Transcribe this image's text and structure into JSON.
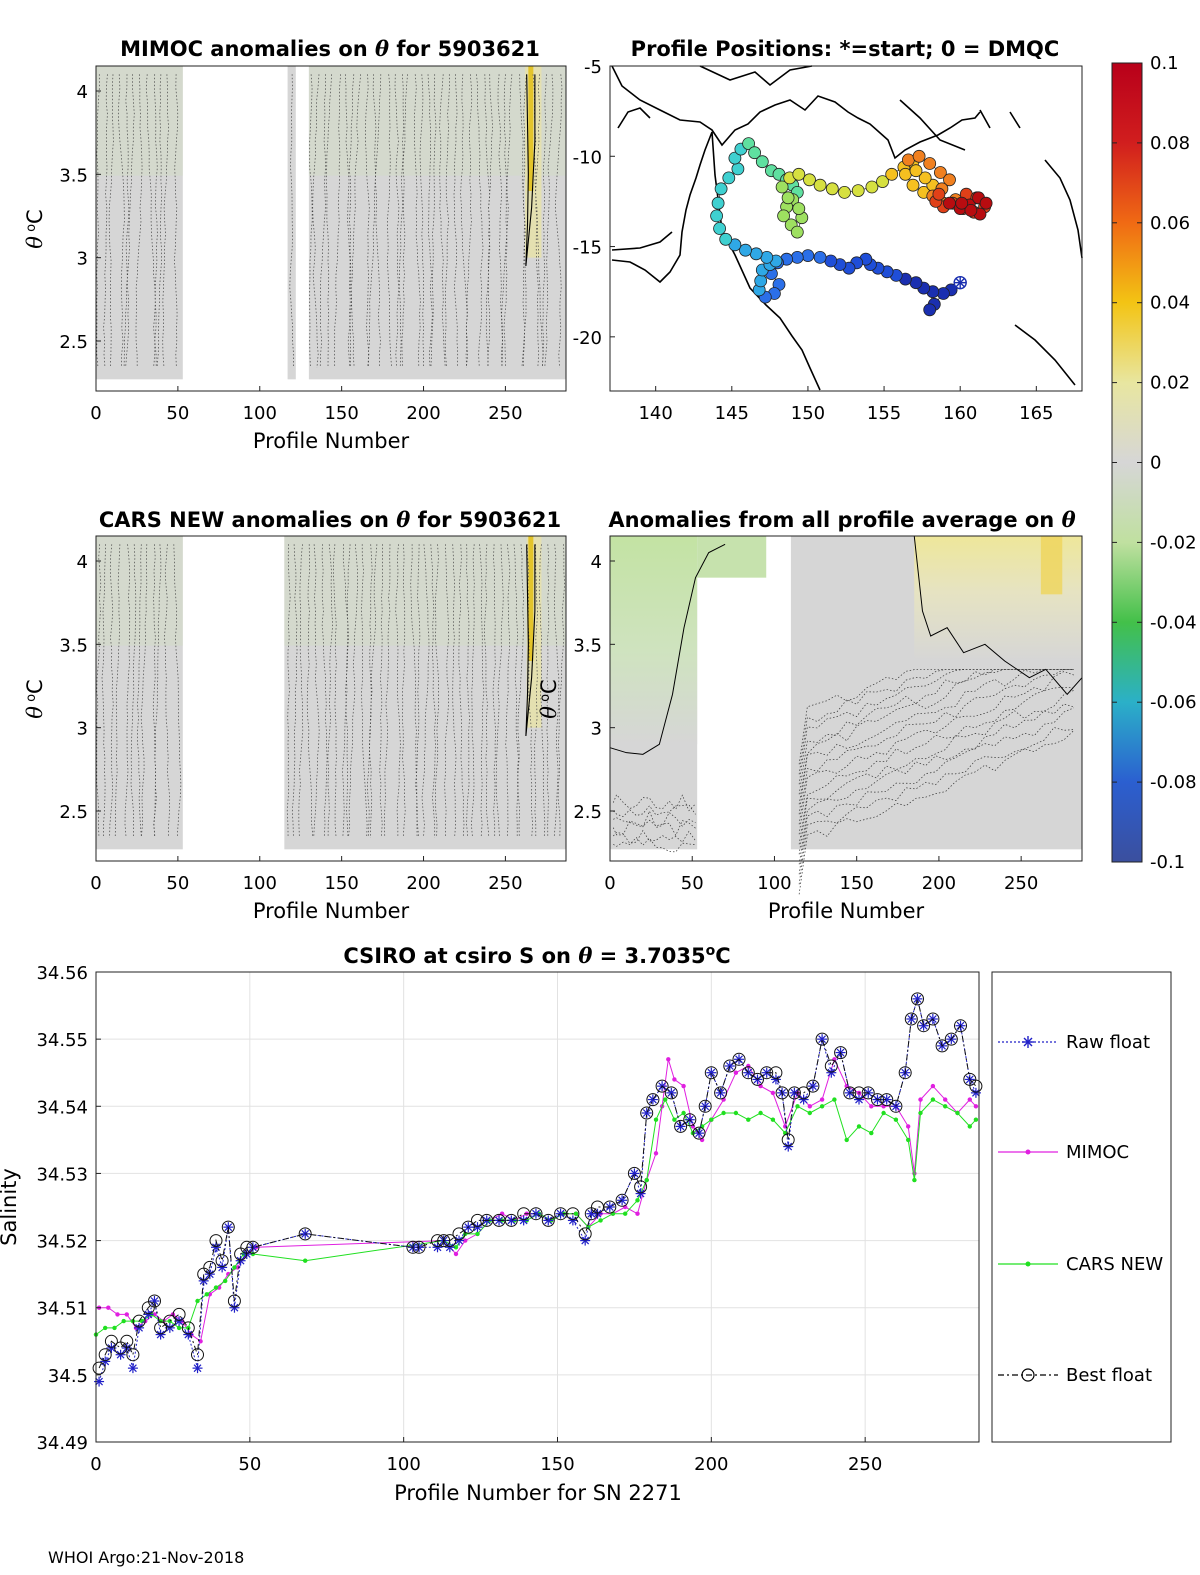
{
  "footer": "WHOI Argo:21-Nov-2018",
  "colorbar": {
    "ticks": [
      "0.1",
      "0.08",
      "0.06",
      "0.04",
      "0.02",
      "0",
      "-0.02",
      "-0.04",
      "-0.06",
      "-0.08",
      "-0.1"
    ],
    "range": [
      -0.1,
      0.1
    ],
    "colors": [
      "#d11e1e",
      "#f06a14",
      "#f3c414",
      "#e8e6a0",
      "#d6d6d6",
      "#c0e0a0",
      "#43c049",
      "#2bb0c8",
      "#2b5fd0",
      "#3b4f9e"
    ]
  },
  "chart_data": [
    {
      "id": "mimoc",
      "type": "heatmap",
      "title_parts": [
        "MIMOC anomalies on ",
        "θ",
        "  for 5903621"
      ],
      "xlabel": "Profile Number",
      "ylabel_parts": [
        "θ",
        " o",
        "C"
      ],
      "xlim": [
        0,
        287
      ],
      "ylim": [
        2.2,
        4.15
      ],
      "xticks": [
        "0",
        "50",
        "100",
        "150",
        "200",
        "250"
      ],
      "xtick_values": [
        0,
        50,
        100,
        150,
        200,
        250
      ],
      "yticks": [
        "4",
        "3.5",
        "3",
        "2.5"
      ],
      "ytick_values": [
        4,
        3.5,
        3,
        2.5
      ],
      "data_segments": [
        [
          0,
          53
        ],
        [
          117,
          122
        ],
        [
          130,
          287
        ]
      ],
      "warm_band": [
        262,
        272
      ]
    },
    {
      "id": "positions",
      "type": "scatter",
      "title": "Profile Positions: *=start; 0 = DMQC",
      "xlim": [
        137,
        168
      ],
      "ylim": [
        -23,
        -5
      ],
      "xticks": [
        "140",
        "145",
        "150",
        "155",
        "160",
        "165"
      ],
      "xtick_values": [
        140,
        145,
        150,
        155,
        160,
        165
      ],
      "yticks": [
        "-5",
        "-10",
        "-15",
        "-20"
      ],
      "ytick_values": [
        -5,
        -10,
        -15,
        -20
      ],
      "start_marker": [
        160.0,
        -17.0
      ],
      "track_lon": [
        160.0,
        159.4,
        158.9,
        158.3,
        158.0,
        158.2,
        157.6,
        157.1,
        156.4,
        155.8,
        155.2,
        154.6,
        154.1,
        153.8,
        153.2,
        152.7,
        152.1,
        151.5,
        150.8,
        150.0,
        149.3,
        148.6,
        148.0,
        147.6,
        148.1,
        147.8,
        147.2,
        146.8,
        146.9,
        147.0,
        147.5,
        147.9,
        147.3,
        146.6,
        145.9,
        145.2,
        144.6,
        144.2,
        144.0,
        144.1,
        144.3,
        144.8,
        145.4,
        145.2,
        145.6,
        146.1,
        146.5,
        147.0,
        147.6,
        148.1,
        148.6,
        149.0,
        149.3,
        149.0,
        148.6,
        148.4,
        148.9,
        149.3,
        149.6,
        149.4,
        148.7,
        148.3,
        148.8,
        149.4,
        150.1,
        150.8,
        151.6,
        152.4,
        153.3,
        154.2,
        154.9,
        155.5,
        156.3,
        156.9,
        156.4,
        156.9,
        157.6,
        158.2,
        157.7,
        157.1,
        156.6,
        157.3,
        158.0,
        158.7,
        159.3,
        158.8,
        158.2,
        158.9,
        159.7,
        160.4,
        161.1,
        161.6,
        160.9,
        160.2,
        159.5,
        158.9,
        158.4,
        158.6,
        159.3,
        160.0,
        160.6,
        161.2,
        161.7,
        161.3,
        160.7,
        160.1
      ],
      "track_lat": [
        -17.0,
        -17.4,
        -17.6,
        -18.2,
        -18.5,
        -17.5,
        -17.3,
        -17.0,
        -16.8,
        -16.6,
        -16.4,
        -16.2,
        -16.0,
        -15.7,
        -15.9,
        -16.2,
        -16.0,
        -15.8,
        -15.6,
        -15.5,
        -15.6,
        -15.7,
        -15.9,
        -16.5,
        -17.1,
        -17.6,
        -17.8,
        -17.4,
        -16.9,
        -16.3,
        -16.0,
        -15.8,
        -15.6,
        -15.4,
        -15.2,
        -14.9,
        -14.6,
        -14.0,
        -13.3,
        -12.6,
        -11.8,
        -11.2,
        -10.7,
        -10.1,
        -9.6,
        -9.3,
        -9.8,
        -10.3,
        -10.8,
        -11.0,
        -11.3,
        -11.6,
        -12.0,
        -12.4,
        -12.8,
        -13.3,
        -13.8,
        -14.2,
        -13.4,
        -12.9,
        -12.3,
        -11.7,
        -11.2,
        -11.0,
        -11.3,
        -11.6,
        -11.8,
        -12.0,
        -11.9,
        -11.7,
        -11.4,
        -11.0,
        -10.6,
        -10.3,
        -11.0,
        -11.6,
        -12.0,
        -11.6,
        -11.2,
        -10.8,
        -10.2,
        -10.0,
        -10.4,
        -10.9,
        -11.3,
        -11.8,
        -12.2,
        -12.6,
        -12.4,
        -12.1,
        -12.3,
        -12.8,
        -13.1,
        -12.9,
        -12.6,
        -12.8,
        -12.5,
        -12.1,
        -12.6,
        -12.9,
        -12.7,
        -12.3,
        -12.6,
        -13.2,
        -13.0,
        -12.6
      ]
    },
    {
      "id": "cars",
      "type": "heatmap",
      "title_parts": [
        "CARS NEW anomalies on ",
        "θ",
        " for 5903621"
      ],
      "xlabel": "Profile Number",
      "ylabel_parts": [
        "θ",
        " o",
        "C"
      ],
      "xlim": [
        0,
        287
      ],
      "ylim": [
        2.2,
        4.15
      ],
      "xticks": [
        "0",
        "50",
        "100",
        "150",
        "200",
        "250"
      ],
      "xtick_values": [
        0,
        50,
        100,
        150,
        200,
        250
      ],
      "yticks": [
        "4",
        "3.5",
        "3",
        "2.5"
      ],
      "ytick_values": [
        4,
        3.5,
        3,
        2.5
      ],
      "data_segments": [
        [
          0,
          53
        ],
        [
          115,
          287
        ]
      ],
      "warm_band": [
        263,
        272
      ]
    },
    {
      "id": "allavg",
      "type": "heatmap",
      "title_parts": [
        "Anomalies from all profile average on ",
        "θ"
      ],
      "xlabel": "Profile Number",
      "ylabel_parts": [
        "θ",
        " o",
        "C"
      ],
      "xlim": [
        0,
        287
      ],
      "ylim": [
        2.2,
        4.15
      ],
      "xticks": [
        "0",
        "50",
        "100",
        "150",
        "200",
        "250"
      ],
      "xtick_values": [
        0,
        50,
        100,
        150,
        200,
        250
      ],
      "yticks": [
        "4",
        "3.5",
        "3",
        "2.5"
      ],
      "ytick_values": [
        4,
        3.5,
        3,
        2.5
      ],
      "data_segments": [
        [
          0,
          53
        ],
        [
          110,
          287
        ]
      ],
      "warm_band": [
        185,
        287
      ]
    },
    {
      "id": "salinity",
      "type": "line",
      "title_parts": [
        "CSIRO at csiro S on ",
        "θ",
        " = 3.7035",
        "o",
        "C"
      ],
      "xlabel": "Profile Number for SN 2271",
      "ylabel": "Salinity",
      "xlim": [
        0,
        287
      ],
      "ylim": [
        34.49,
        34.56
      ],
      "xticks": [
        "0",
        "50",
        "100",
        "150",
        "200",
        "250"
      ],
      "xtick_values": [
        0,
        50,
        100,
        150,
        200,
        250
      ],
      "yticks": [
        "34.56",
        "34.55",
        "34.54",
        "34.53",
        "34.52",
        "34.51",
        "34.5",
        "34.49"
      ],
      "ytick_values": [
        34.56,
        34.55,
        34.54,
        34.53,
        34.52,
        34.51,
        34.5,
        34.49
      ],
      "grid": true,
      "legend": [
        "Raw float",
        "MIMOC",
        "CARS NEW",
        "Best float"
      ],
      "series": [
        {
          "name": "Raw float",
          "x": [
            1,
            3,
            5,
            8,
            10,
            12,
            14,
            17,
            19,
            21,
            24,
            27,
            30,
            33,
            35,
            37,
            39,
            41,
            43,
            45,
            47,
            49,
            51,
            68,
            103,
            105,
            111,
            113,
            115,
            118,
            121,
            124,
            127,
            131,
            135,
            139,
            143,
            147,
            151,
            155,
            159,
            161,
            163,
            167,
            171,
            175,
            177,
            179,
            181,
            184,
            187,
            190,
            193,
            196,
            198,
            200,
            203,
            206,
            209,
            212,
            215,
            218,
            221,
            223,
            225,
            227,
            230,
            233,
            236,
            239,
            242,
            245,
            248,
            251,
            254,
            257,
            260,
            263,
            265,
            267,
            269,
            272,
            275,
            278,
            281,
            284,
            286
          ],
          "y": [
            34.499,
            34.502,
            34.504,
            34.503,
            34.504,
            34.501,
            34.507,
            34.509,
            34.511,
            34.506,
            34.507,
            34.508,
            34.506,
            34.501,
            34.514,
            34.515,
            34.519,
            34.516,
            34.522,
            34.51,
            34.517,
            34.518,
            34.519,
            34.521,
            34.519,
            34.519,
            34.519,
            34.52,
            34.519,
            34.52,
            34.522,
            34.522,
            34.523,
            34.523,
            34.523,
            34.523,
            34.524,
            34.523,
            34.524,
            34.523,
            34.52,
            34.524,
            34.524,
            34.525,
            34.526,
            34.53,
            34.527,
            34.539,
            34.541,
            34.543,
            34.542,
            34.537,
            34.538,
            34.536,
            34.54,
            34.545,
            34.542,
            34.546,
            34.547,
            34.545,
            34.544,
            34.545,
            34.544,
            34.542,
            34.534,
            34.542,
            34.541,
            34.543,
            34.55,
            34.545,
            34.548,
            34.542,
            34.541,
            34.542,
            34.541,
            34.541,
            34.54,
            34.545,
            34.553,
            34.556,
            34.552,
            34.553,
            34.549,
            34.55,
            34.552,
            34.544,
            34.542
          ]
        },
        {
          "name": "MIMOC",
          "x": [
            1,
            4,
            7,
            10,
            13,
            16,
            19,
            22,
            25,
            28,
            31,
            34,
            37,
            40,
            43,
            46,
            49,
            52,
            113,
            117,
            120,
            124,
            128,
            132,
            136,
            140,
            144,
            148,
            152,
            156,
            160,
            164,
            168,
            172,
            176,
            179,
            182,
            184,
            186,
            188,
            191,
            194,
            197,
            200,
            204,
            208,
            212,
            216,
            220,
            224,
            228,
            232,
            236,
            240,
            244,
            248,
            252,
            256,
            260,
            264,
            266,
            268,
            272,
            276,
            280,
            284,
            286
          ],
          "y": [
            34.51,
            34.51,
            34.509,
            34.509,
            34.507,
            34.508,
            34.509,
            34.508,
            34.509,
            34.508,
            34.506,
            34.505,
            34.512,
            34.513,
            34.515,
            34.516,
            34.518,
            34.519,
            34.52,
            34.518,
            34.52,
            34.521,
            34.523,
            34.524,
            34.523,
            34.524,
            34.524,
            34.523,
            34.524,
            34.524,
            34.522,
            34.524,
            34.524,
            34.525,
            34.524,
            34.529,
            34.533,
            34.54,
            34.547,
            34.544,
            34.543,
            34.537,
            34.535,
            34.538,
            34.541,
            34.545,
            34.546,
            34.543,
            34.542,
            34.537,
            34.542,
            34.54,
            34.541,
            34.547,
            34.543,
            34.542,
            34.54,
            34.54,
            34.54,
            34.537,
            34.53,
            34.541,
            34.543,
            34.541,
            34.539,
            34.541,
            34.54
          ]
        },
        {
          "name": "CARS NEW",
          "x": [
            0,
            3,
            6,
            9,
            12,
            15,
            18,
            21,
            24,
            27,
            30,
            33,
            36,
            39,
            42,
            45,
            48,
            51,
            68,
            113,
            117,
            120,
            124,
            128,
            132,
            136,
            140,
            144,
            148,
            152,
            156,
            160,
            164,
            168,
            172,
            176,
            179,
            182,
            185,
            188,
            191,
            194,
            197,
            200,
            204,
            208,
            212,
            216,
            220,
            224,
            228,
            232,
            236,
            240,
            244,
            248,
            252,
            256,
            260,
            264,
            266,
            268,
            272,
            276,
            280,
            284,
            286
          ],
          "y": [
            34.506,
            34.507,
            34.507,
            34.508,
            34.508,
            34.508,
            34.509,
            34.508,
            34.508,
            34.507,
            34.507,
            34.511,
            34.512,
            34.513,
            34.514,
            34.516,
            34.518,
            34.518,
            34.517,
            34.52,
            34.519,
            34.521,
            34.521,
            34.523,
            34.523,
            34.523,
            34.523,
            34.524,
            34.523,
            34.524,
            34.524,
            34.522,
            34.523,
            34.524,
            34.524,
            34.526,
            34.529,
            34.538,
            34.541,
            34.538,
            34.539,
            34.536,
            34.537,
            34.538,
            34.539,
            34.539,
            34.538,
            34.539,
            34.538,
            34.536,
            34.54,
            34.539,
            34.54,
            34.541,
            34.535,
            34.537,
            34.536,
            34.539,
            34.538,
            34.535,
            34.529,
            34.539,
            34.541,
            34.54,
            34.539,
            34.537,
            34.538
          ]
        },
        {
          "name": "Best float",
          "x": [
            1,
            3,
            5,
            8,
            10,
            12,
            14,
            17,
            19,
            21,
            24,
            27,
            30,
            33,
            35,
            37,
            39,
            41,
            43,
            45,
            47,
            49,
            51,
            68,
            103,
            105,
            111,
            113,
            115,
            118,
            121,
            124,
            127,
            131,
            135,
            139,
            143,
            147,
            151,
            155,
            159,
            161,
            163,
            167,
            171,
            175,
            177,
            179,
            181,
            184,
            187,
            190,
            193,
            196,
            198,
            200,
            203,
            206,
            209,
            212,
            215,
            218,
            221,
            223,
            225,
            227,
            230,
            233,
            236,
            239,
            242,
            245,
            248,
            251,
            254,
            257,
            260,
            263,
            265,
            267,
            269,
            272,
            275,
            278,
            281,
            284,
            286
          ],
          "y": [
            34.501,
            34.503,
            34.505,
            34.504,
            34.505,
            34.503,
            34.508,
            34.51,
            34.511,
            34.507,
            34.508,
            34.509,
            34.507,
            34.503,
            34.515,
            34.516,
            34.52,
            34.517,
            34.522,
            34.511,
            34.518,
            34.519,
            34.519,
            34.521,
            34.519,
            34.519,
            34.52,
            34.52,
            34.52,
            34.521,
            34.522,
            34.523,
            34.523,
            34.523,
            34.523,
            34.524,
            34.524,
            34.523,
            34.524,
            34.524,
            34.521,
            34.524,
            34.525,
            34.525,
            34.526,
            34.53,
            34.528,
            34.539,
            34.541,
            34.543,
            34.542,
            34.537,
            34.538,
            34.536,
            34.54,
            34.545,
            34.542,
            34.546,
            34.547,
            34.545,
            34.544,
            34.545,
            34.545,
            34.542,
            34.535,
            34.542,
            34.542,
            34.543,
            34.55,
            34.546,
            34.548,
            34.542,
            34.542,
            34.542,
            34.541,
            34.541,
            34.54,
            34.545,
            34.553,
            34.556,
            34.552,
            34.553,
            34.549,
            34.55,
            34.552,
            34.544,
            34.543
          ]
        }
      ]
    }
  ]
}
